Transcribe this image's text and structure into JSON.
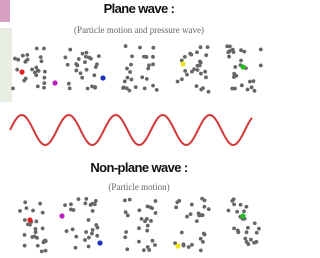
{
  "sections": [
    {
      "title": "Plane wave :",
      "subtitle": "(Particle motion and pressure wave)"
    },
    {
      "title": "Non-plane wave :",
      "subtitle": "(Particle motion)"
    }
  ]
}
